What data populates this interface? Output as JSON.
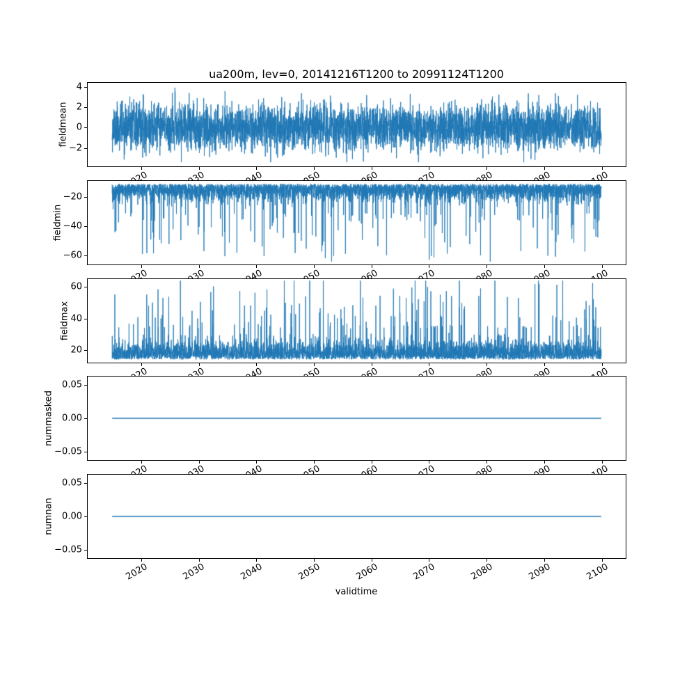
{
  "chart_data": {
    "type": "line",
    "title": "ua200m, lev=0, 20141216T1200 to 20991124T1200",
    "xlabel": "validtime",
    "line_color": "#1f77b4",
    "grid": false,
    "legend": "none",
    "x_range": [
      2014.96,
      2099.9
    ],
    "xticks": [
      2020,
      2030,
      2040,
      2050,
      2060,
      2070,
      2080,
      2090,
      2100
    ],
    "xtick_labels": [
      "2020",
      "2030",
      "2040",
      "2050",
      "2060",
      "2070",
      "2080",
      "2090",
      "2100"
    ],
    "xtick_rotation_deg": 30,
    "n_points": 4200,
    "subplots": [
      {
        "ylabel": "fieldmean",
        "ylim": [
          -3.8,
          4.4
        ],
        "yticks": [
          4,
          2,
          0,
          -2
        ],
        "ytick_labels": [
          "4",
          "2",
          "0",
          "−2"
        ],
        "description": "dense noisy series centered near 0, band ~-2..2, extremes ~-3.3 and ~4",
        "series": {
          "gen": "gauss",
          "seed": 11,
          "mean": 0.05,
          "std": 1.12,
          "clip_min": -3.4,
          "clip_max": 4.1
        }
      },
      {
        "ylabel": "fieldmin",
        "ylim": [
          -66,
          -9
        ],
        "yticks": [
          -20,
          -40,
          -60
        ],
        "ytick_labels": [
          "−20",
          "−40",
          "−60"
        ],
        "description": "dense band ~-10..-25 with downward spikes to ~-64",
        "series": {
          "gen": "spiky",
          "seed": 22,
          "base": -11,
          "dir": -1,
          "band_scale": 5.5,
          "spike_prob": 0.04,
          "spike_base": 20,
          "spike_var": 34,
          "clip": -64
        }
      },
      {
        "ylabel": "fieldmax",
        "ylim": [
          12,
          65
        ],
        "yticks": [
          60,
          40,
          20
        ],
        "ytick_labels": [
          "60",
          "40",
          "20"
        ],
        "description": "dense band ~14..30 with upward spikes to ~64",
        "series": {
          "gen": "spiky",
          "seed": 33,
          "base": 14,
          "dir": 1,
          "band_scale": 5.5,
          "spike_prob": 0.04,
          "spike_base": 20,
          "spike_var": 34,
          "clip": 64
        }
      },
      {
        "ylabel": "nummasked",
        "ylim": [
          -0.0625,
          0.0625
        ],
        "yticks": [
          0.05,
          0,
          -0.05
        ],
        "ytick_labels": [
          "0.05",
          "0.00",
          "−0.05"
        ],
        "description": "constant zero line",
        "series": {
          "gen": "const",
          "value": 0
        }
      },
      {
        "ylabel": "numnan",
        "ylim": [
          -0.0625,
          0.0625
        ],
        "yticks": [
          0.05,
          0,
          -0.05
        ],
        "ytick_labels": [
          "0.05",
          "0.00",
          "−0.05"
        ],
        "description": "constant zero line",
        "series": {
          "gen": "const",
          "value": 0
        }
      }
    ]
  }
}
